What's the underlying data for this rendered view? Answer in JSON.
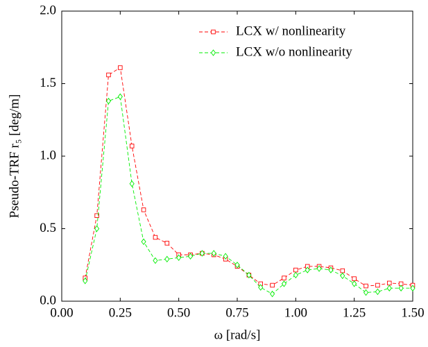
{
  "chart_data": {
    "type": "line",
    "xlabel": "ω [rad/s]",
    "ylabel": "Pseudo-TRF r₅ [deg/m]",
    "x": [
      0.1,
      0.15,
      0.2,
      0.25,
      0.3,
      0.35,
      0.4,
      0.45,
      0.5,
      0.55,
      0.6,
      0.65,
      0.7,
      0.75,
      0.8,
      0.85,
      0.9,
      0.95,
      1.0,
      1.05,
      1.1,
      1.15,
      1.2,
      1.25,
      1.3,
      1.35,
      1.4,
      1.45,
      1.5
    ],
    "series": [
      {
        "name": "LCX w/ nonlinearity",
        "color": "#ff0000",
        "marker": "square",
        "values": [
          0.16,
          0.59,
          1.56,
          1.61,
          1.07,
          0.63,
          0.44,
          0.4,
          0.32,
          0.32,
          0.33,
          0.32,
          0.29,
          0.24,
          0.18,
          0.12,
          0.11,
          0.16,
          0.215,
          0.24,
          0.24,
          0.23,
          0.21,
          0.155,
          0.105,
          0.11,
          0.125,
          0.12,
          0.11
        ]
      },
      {
        "name": "LCX w/o nonlinearity",
        "color": "#00ee00",
        "marker": "diamond",
        "values": [
          0.14,
          0.5,
          1.38,
          1.41,
          0.81,
          0.41,
          0.28,
          0.29,
          0.3,
          0.31,
          0.33,
          0.33,
          0.31,
          0.25,
          0.18,
          0.095,
          0.05,
          0.12,
          0.18,
          0.215,
          0.225,
          0.215,
          0.175,
          0.12,
          0.06,
          0.065,
          0.09,
          0.09,
          0.09
        ]
      }
    ],
    "xlim": [
      0,
      1.5
    ],
    "ylim": [
      0,
      2
    ],
    "xticks": [
      {
        "value": 0,
        "label": "0.00"
      },
      {
        "value": 0.25,
        "label": "0.25"
      },
      {
        "value": 0.5,
        "label": "0.50"
      },
      {
        "value": 0.75,
        "label": "0.75"
      },
      {
        "value": 1,
        "label": "1.00"
      },
      {
        "value": 1.25,
        "label": "1.25"
      },
      {
        "value": 1.5,
        "label": "1.50"
      }
    ],
    "yticks": [
      {
        "value": 0,
        "label": "0.0"
      },
      {
        "value": 0.5,
        "label": "0.5"
      },
      {
        "value": 1,
        "label": "1.0"
      },
      {
        "value": 1.5,
        "label": "1.5"
      },
      {
        "value": 2,
        "label": "2.0"
      }
    ],
    "legend": "upper right"
  }
}
